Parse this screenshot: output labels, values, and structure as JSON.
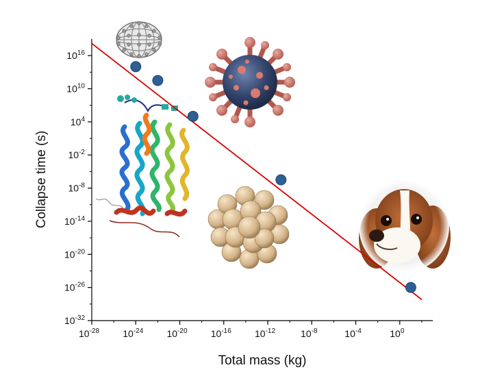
{
  "chart_data": {
    "type": "scatter",
    "title": "",
    "xlabel": "Total mass (kg)",
    "ylabel": "Collapse time (s)",
    "x_scale": "log10",
    "y_scale": "log10",
    "xlim_exp": [
      -28,
      3
    ],
    "ylim_exp": [
      -32,
      19
    ],
    "x_ticks": [
      {
        "exp": -28,
        "base": "10",
        "sup": "-28"
      },
      {
        "exp": -24,
        "base": "10",
        "sup": "-24"
      },
      {
        "exp": -20,
        "base": "10",
        "sup": "-20"
      },
      {
        "exp": -16,
        "base": "10",
        "sup": "-16"
      },
      {
        "exp": -12,
        "base": "10",
        "sup": "-12"
      },
      {
        "exp": -8,
        "base": "10",
        "sup": "-8"
      },
      {
        "exp": -4,
        "base": "10",
        "sup": "-4"
      },
      {
        "exp": 0,
        "base": "10",
        "sup": "0"
      }
    ],
    "y_ticks": [
      {
        "exp": 16,
        "base": "10",
        "sup": "16"
      },
      {
        "exp": 10,
        "base": "10",
        "sup": "10"
      },
      {
        "exp": 4,
        "base": "10",
        "sup": "4"
      },
      {
        "exp": -2,
        "base": "10",
        "sup": "-2"
      },
      {
        "exp": -8,
        "base": "10",
        "sup": "-8"
      },
      {
        "exp": -14,
        "base": "10",
        "sup": "-14"
      },
      {
        "exp": -20,
        "base": "10",
        "sup": "-20"
      },
      {
        "exp": -26,
        "base": "10",
        "sup": "-26"
      },
      {
        "exp": -32,
        "base": "10",
        "sup": "-32"
      }
    ],
    "points": [
      {
        "name": "fullerene",
        "log_x": -24.0,
        "log_y": 14.0
      },
      {
        "name": "protein",
        "log_x": -22.0,
        "log_y": 11.5
      },
      {
        "name": "virus",
        "log_x": -18.8,
        "log_y": 5.0
      },
      {
        "name": "nanoparticle",
        "log_x": -10.8,
        "log_y": -6.5
      },
      {
        "name": "dog",
        "log_x": 1.0,
        "log_y": -26.0
      }
    ],
    "fit_line": {
      "x0": -28,
      "y0": 18.2,
      "x1": 2.0,
      "y1": -28.2
    },
    "colors": {
      "marker": "#2f5f93",
      "line": "#dd0000"
    },
    "illustrations": [
      "fullerene-molecule",
      "protein-ribbon",
      "virus-particle",
      "nanoparticle-cluster",
      "cavalier-spaniel"
    ]
  }
}
